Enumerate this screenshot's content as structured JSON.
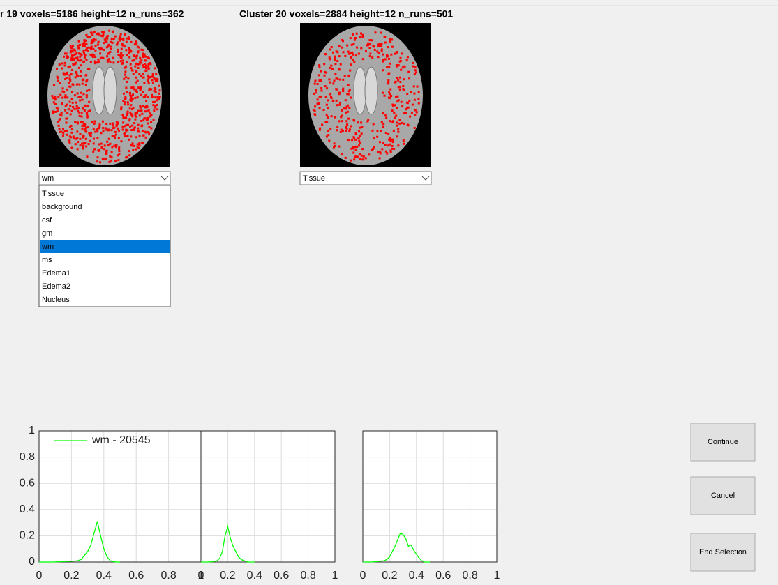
{
  "header": {
    "titles": [
      "r 19  voxels=5186 height=12  n_runs=362",
      "Cluster 20  voxels=2884 height=12  n_runs=501"
    ]
  },
  "panels": [
    {
      "dropdown": "wm",
      "options": [
        "Tissue",
        "background",
        "csf",
        "gm",
        "wm",
        "ms",
        "Edema1",
        "Edema2",
        "Nucleus"
      ],
      "selected": 4
    },
    {
      "dropdown": "Tissue"
    }
  ],
  "chart_data": [
    {
      "type": "line",
      "xlim": [
        0,
        1
      ],
      "ylim": [
        0,
        1
      ],
      "xticks": [
        0,
        0.2,
        0.4,
        0.6,
        0.8,
        1
      ],
      "yticks": [
        0,
        0.2,
        0.4,
        0.6,
        0.8,
        1
      ],
      "grid": true,
      "ytick_labels": true,
      "legend": "upper left",
      "series": [
        {
          "name": "wm - 20545",
          "color": "#00ff00",
          "x": [
            0,
            0.04,
            0.08,
            0.12,
            0.16,
            0.2,
            0.24,
            0.26,
            0.28,
            0.3,
            0.32,
            0.34,
            0.36,
            0.38,
            0.4,
            0.42,
            0.44,
            0.46,
            0.48,
            0.5
          ],
          "values": [
            0,
            0,
            0,
            0.002,
            0.004,
            0.006,
            0.01,
            0.02,
            0.05,
            0.08,
            0.13,
            0.22,
            0.31,
            0.2,
            0.1,
            0.04,
            0.01,
            0.003,
            0,
            0
          ]
        }
      ]
    },
    {
      "type": "line",
      "xlim": [
        0,
        1
      ],
      "ylim": [
        0,
        1
      ],
      "xticks": [
        0,
        0.2,
        0.4,
        0.6,
        0.8,
        1
      ],
      "yticks": [
        0,
        0.2,
        0.4,
        0.6,
        0.8,
        1
      ],
      "grid": true,
      "ytick_labels": false,
      "series": [
        {
          "color": "#00ff00",
          "x": [
            0,
            0.04,
            0.08,
            0.1,
            0.12,
            0.14,
            0.16,
            0.18,
            0.2,
            0.22,
            0.24,
            0.26,
            0.28,
            0.3,
            0.32,
            0.34,
            0.36,
            0.4
          ],
          "values": [
            0,
            0,
            0.002,
            0.005,
            0.01,
            0.03,
            0.08,
            0.2,
            0.27,
            0.18,
            0.12,
            0.08,
            0.04,
            0.02,
            0.01,
            0.003,
            0,
            0
          ]
        }
      ]
    },
    {
      "type": "line",
      "xlim": [
        0,
        1
      ],
      "ylim": [
        0,
        1
      ],
      "xticks": [
        0,
        0.2,
        0.4,
        0.6,
        0.8,
        1
      ],
      "yticks": [
        0,
        0.2,
        0.4,
        0.6,
        0.8,
        1
      ],
      "grid": true,
      "ytick_labels": false,
      "series": [
        {
          "color": "#00ff00",
          "x": [
            0,
            0.06,
            0.12,
            0.16,
            0.18,
            0.2,
            0.22,
            0.24,
            0.26,
            0.28,
            0.3,
            0.32,
            0.34,
            0.36,
            0.38,
            0.4,
            0.42,
            0.44,
            0.46,
            0.5
          ],
          "values": [
            0,
            0,
            0.005,
            0.01,
            0.02,
            0.04,
            0.08,
            0.12,
            0.17,
            0.22,
            0.21,
            0.18,
            0.12,
            0.13,
            0.09,
            0.06,
            0.03,
            0.01,
            0,
            0
          ]
        }
      ]
    }
  ],
  "buttons": [
    "Continue",
    "Cancel",
    "End Selection"
  ]
}
